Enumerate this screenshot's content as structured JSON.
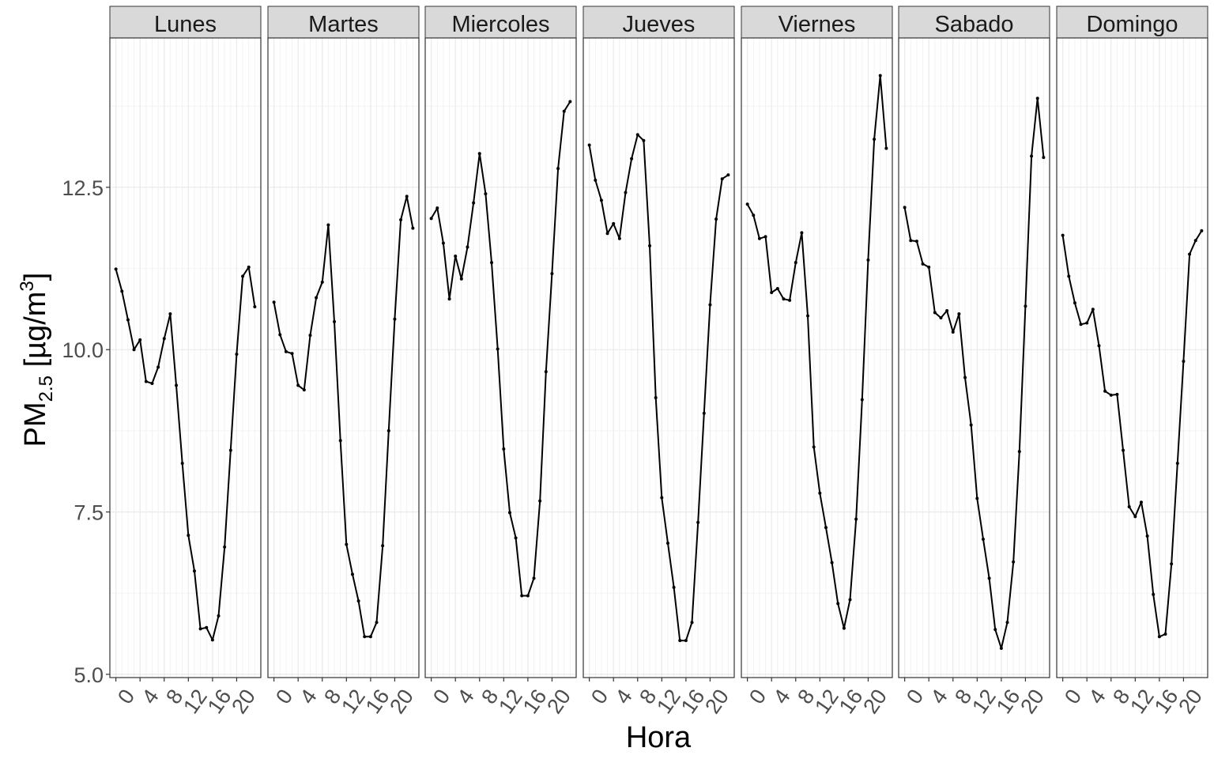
{
  "chart_data": {
    "type": "line",
    "facet_by": "day",
    "xlabel": "Hora",
    "ylabel": {
      "main": "PM",
      "sub": "2.5",
      "unit_open": " [µg/m",
      "sup": "3",
      "unit_close": "]"
    },
    "xlim": [
      -1,
      24
    ],
    "ylim": [
      4.95,
      14.8
    ],
    "x_ticks": [
      0,
      4,
      8,
      12,
      16,
      20
    ],
    "y_ticks": [
      5.0,
      7.5,
      10.0,
      12.5
    ],
    "y_tick_labels": [
      "5.0",
      "7.5",
      "10.0",
      "12.5"
    ],
    "grid": true,
    "hours": [
      0,
      1,
      2,
      3,
      4,
      5,
      6,
      7,
      8,
      9,
      10,
      11,
      12,
      13,
      14,
      15,
      16,
      17,
      18,
      19,
      20,
      21,
      22,
      23
    ],
    "panels": [
      {
        "label": "Lunes",
        "values": [
          11.24,
          10.9,
          10.46,
          10.0,
          10.15,
          9.51,
          9.48,
          9.73,
          10.17,
          10.55,
          9.45,
          8.25,
          7.14,
          6.59,
          5.7,
          5.72,
          5.53,
          5.9,
          6.96,
          8.45,
          9.93,
          11.13,
          11.27,
          10.66
        ]
      },
      {
        "label": "Martes",
        "values": [
          10.73,
          10.23,
          9.97,
          9.94,
          9.45,
          9.38,
          10.22,
          10.8,
          11.04,
          11.92,
          10.43,
          8.6,
          7.0,
          6.54,
          6.13,
          5.58,
          5.58,
          5.8,
          6.98,
          8.75,
          10.47,
          12.0,
          12.36,
          11.87
        ]
      },
      {
        "label": "Miercoles",
        "values": [
          12.02,
          12.18,
          11.64,
          10.78,
          11.44,
          11.09,
          11.58,
          12.26,
          13.02,
          12.4,
          11.34,
          10.01,
          8.47,
          7.49,
          7.1,
          6.21,
          6.21,
          6.48,
          7.67,
          9.66,
          11.17,
          12.79,
          13.67,
          13.82
        ]
      },
      {
        "label": "Jueves",
        "values": [
          13.15,
          12.61,
          12.3,
          11.79,
          11.94,
          11.71,
          12.42,
          12.94,
          13.31,
          13.22,
          11.6,
          9.26,
          7.72,
          7.02,
          6.34,
          5.52,
          5.52,
          5.8,
          7.34,
          9.02,
          10.69,
          12.01,
          12.63,
          12.69
        ]
      },
      {
        "label": "Viernes",
        "values": [
          12.24,
          12.07,
          11.71,
          11.74,
          10.88,
          10.94,
          10.78,
          10.76,
          11.34,
          11.8,
          10.52,
          8.5,
          7.79,
          7.26,
          6.72,
          6.09,
          5.71,
          6.15,
          7.39,
          9.23,
          11.38,
          13.24,
          14.22,
          13.1
        ]
      },
      {
        "label": "Sabado",
        "values": [
          12.19,
          11.68,
          11.67,
          11.32,
          11.27,
          10.57,
          10.49,
          10.6,
          10.27,
          10.55,
          9.57,
          8.84,
          7.71,
          7.08,
          6.48,
          5.69,
          5.4,
          5.8,
          6.73,
          8.43,
          10.67,
          12.98,
          13.87,
          12.96
        ]
      },
      {
        "label": "Domingo",
        "values": [
          11.76,
          11.13,
          10.72,
          10.39,
          10.41,
          10.62,
          10.06,
          9.36,
          9.3,
          9.31,
          8.45,
          7.58,
          7.43,
          7.65,
          7.13,
          6.23,
          5.58,
          5.62,
          6.7,
          8.25,
          9.82,
          11.47,
          11.68,
          11.83
        ]
      }
    ]
  }
}
